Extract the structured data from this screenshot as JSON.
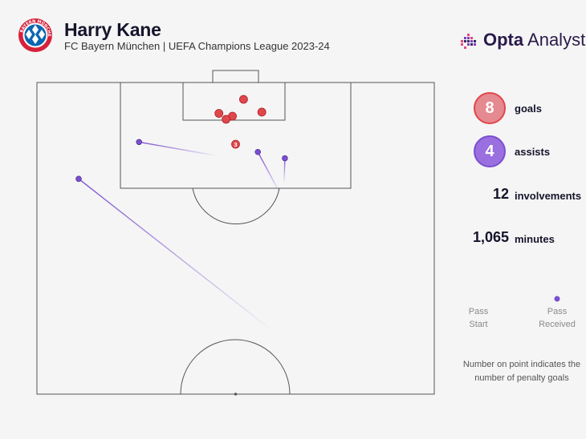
{
  "header": {
    "title": "Harry Kane",
    "subtitle": "FC Bayern München | UEFA Champions League 2023-24",
    "brand": {
      "bold": "Opta",
      "rest": "Analyst"
    },
    "crest_text": "FC BAYERN MÜNCHEN"
  },
  "colors": {
    "goal": "#e0474c",
    "goal_light": "#e58a90",
    "assist": "#7a4fd0",
    "assist_light": "#9a6fe0",
    "pitch_line": "#555555",
    "brand_dots": [
      "#e8457a",
      "#7a3fb8",
      "#3a2468"
    ]
  },
  "stats": [
    {
      "value": "8",
      "label": "goals",
      "style": "goal"
    },
    {
      "value": "4",
      "label": "assists",
      "style": "assist"
    },
    {
      "value": "12",
      "label": "involvements",
      "style": "plain"
    },
    {
      "value": "1,065",
      "label": "minutes",
      "style": "plain"
    }
  ],
  "legend": {
    "start": "Pass\nStart",
    "end": "Pass\nReceived"
  },
  "note": "Number on point indicates the number of penalty goals",
  "chart_data": {
    "type": "scatter",
    "pitch_coordinates": "x 0-100 across pitch width, y 0-100 from goal line",
    "goals": [
      {
        "x": 52.0,
        "y": 5.4,
        "count": 1
      },
      {
        "x": 45.8,
        "y": 9.9,
        "count": 1
      },
      {
        "x": 56.6,
        "y": 9.5,
        "count": 1
      },
      {
        "x": 49.2,
        "y": 10.8,
        "count": 1
      },
      {
        "x": 47.6,
        "y": 11.8,
        "count": 1
      },
      {
        "x": 50.0,
        "y": 19.8,
        "count": 3,
        "label": "3"
      }
    ],
    "assists": [
      {
        "start": [
          25.7,
          19.1
        ],
        "end": [
          45.7,
          23.6
        ]
      },
      {
        "start": [
          55.6,
          22.3
        ],
        "end": [
          61.2,
          35.6
        ]
      },
      {
        "start": [
          62.4,
          24.3
        ],
        "end": [
          62.2,
          32.4
        ]
      },
      {
        "start": [
          10.5,
          30.9
        ],
        "end": [
          59.6,
          80.0
        ]
      }
    ]
  }
}
